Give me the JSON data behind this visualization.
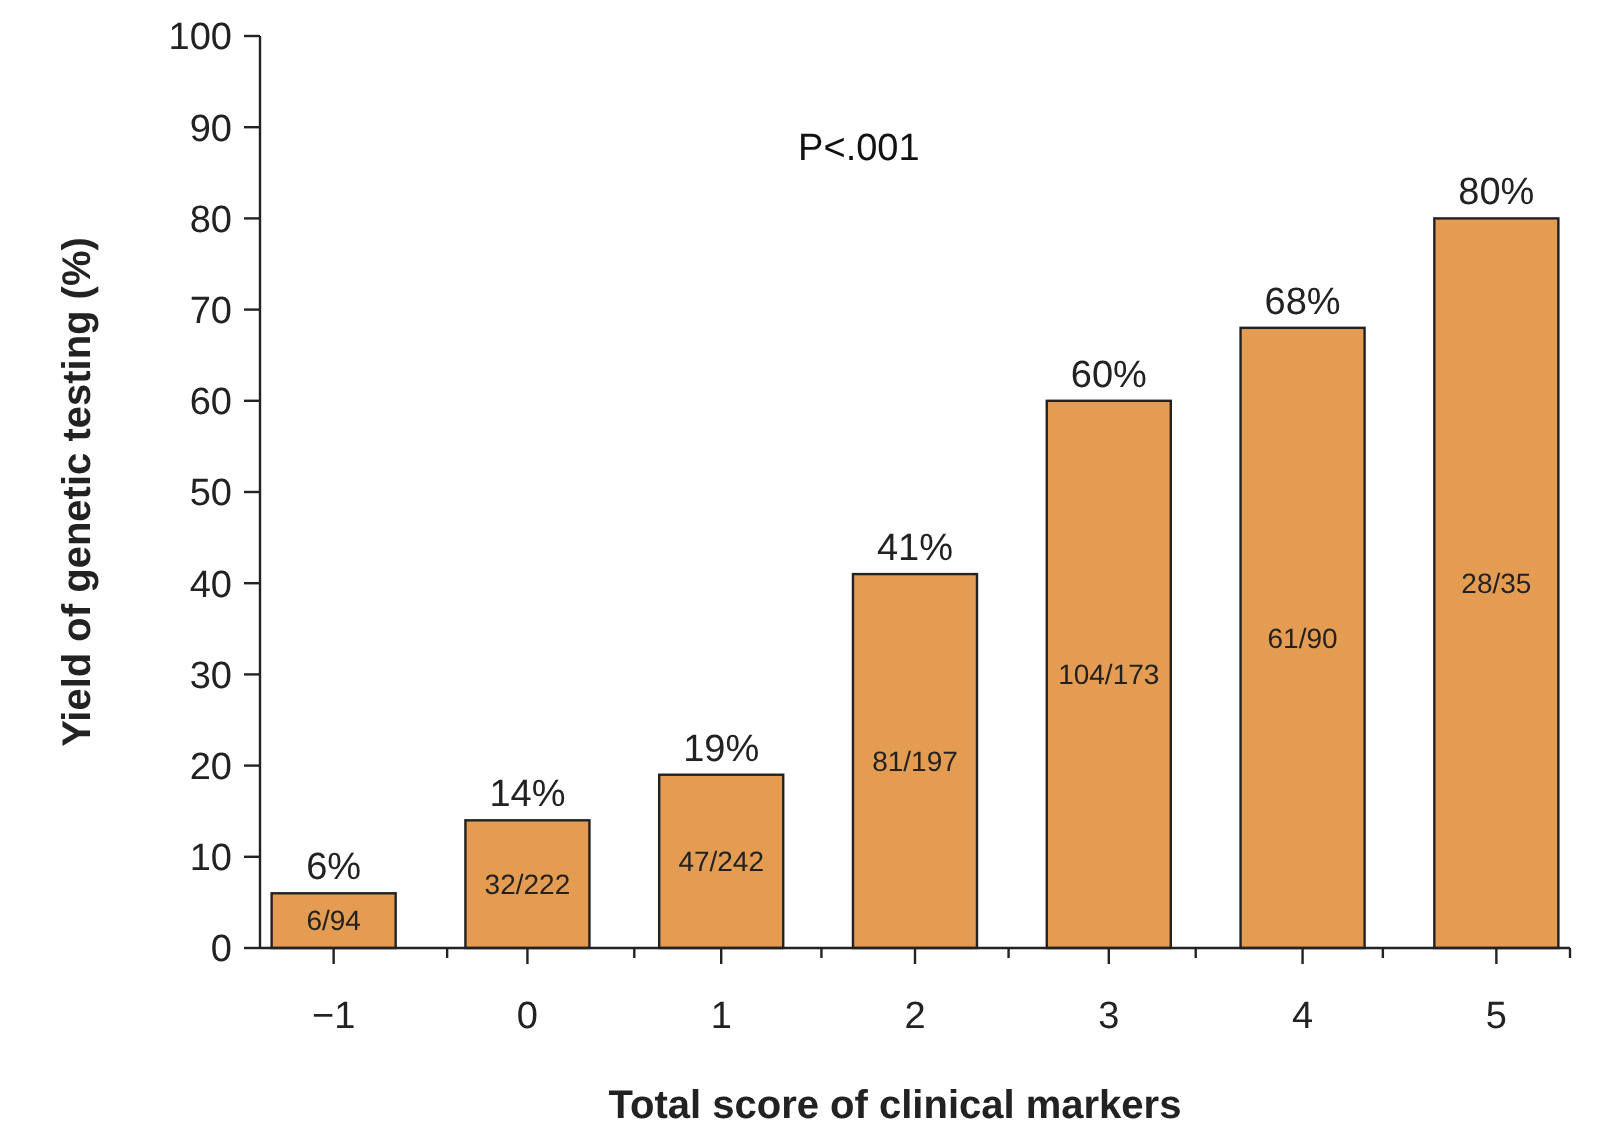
{
  "chart_data": {
    "type": "bar",
    "xlabel": "Total score of clinical markers",
    "ylabel": "Yield of genetic testing (%)",
    "categories": [
      "−1",
      "0",
      "1",
      "2",
      "3",
      "4",
      "5"
    ],
    "values": [
      6,
      14,
      19,
      41,
      60,
      68,
      80
    ],
    "value_labels": [
      "6%",
      "14%",
      "19%",
      "41%",
      "60%",
      "68%",
      "80%"
    ],
    "color": "#e49c52",
    "ylim": [
      0,
      100
    ],
    "yticks": [
      0,
      10,
      20,
      30,
      40,
      50,
      60,
      70,
      80,
      90,
      100
    ],
    "grid": false,
    "annotations": [
      "P<.001",
      "6/94",
      "32/222",
      "47/242",
      "81/197",
      "104/173",
      "61/90",
      "28/35"
    ]
  }
}
